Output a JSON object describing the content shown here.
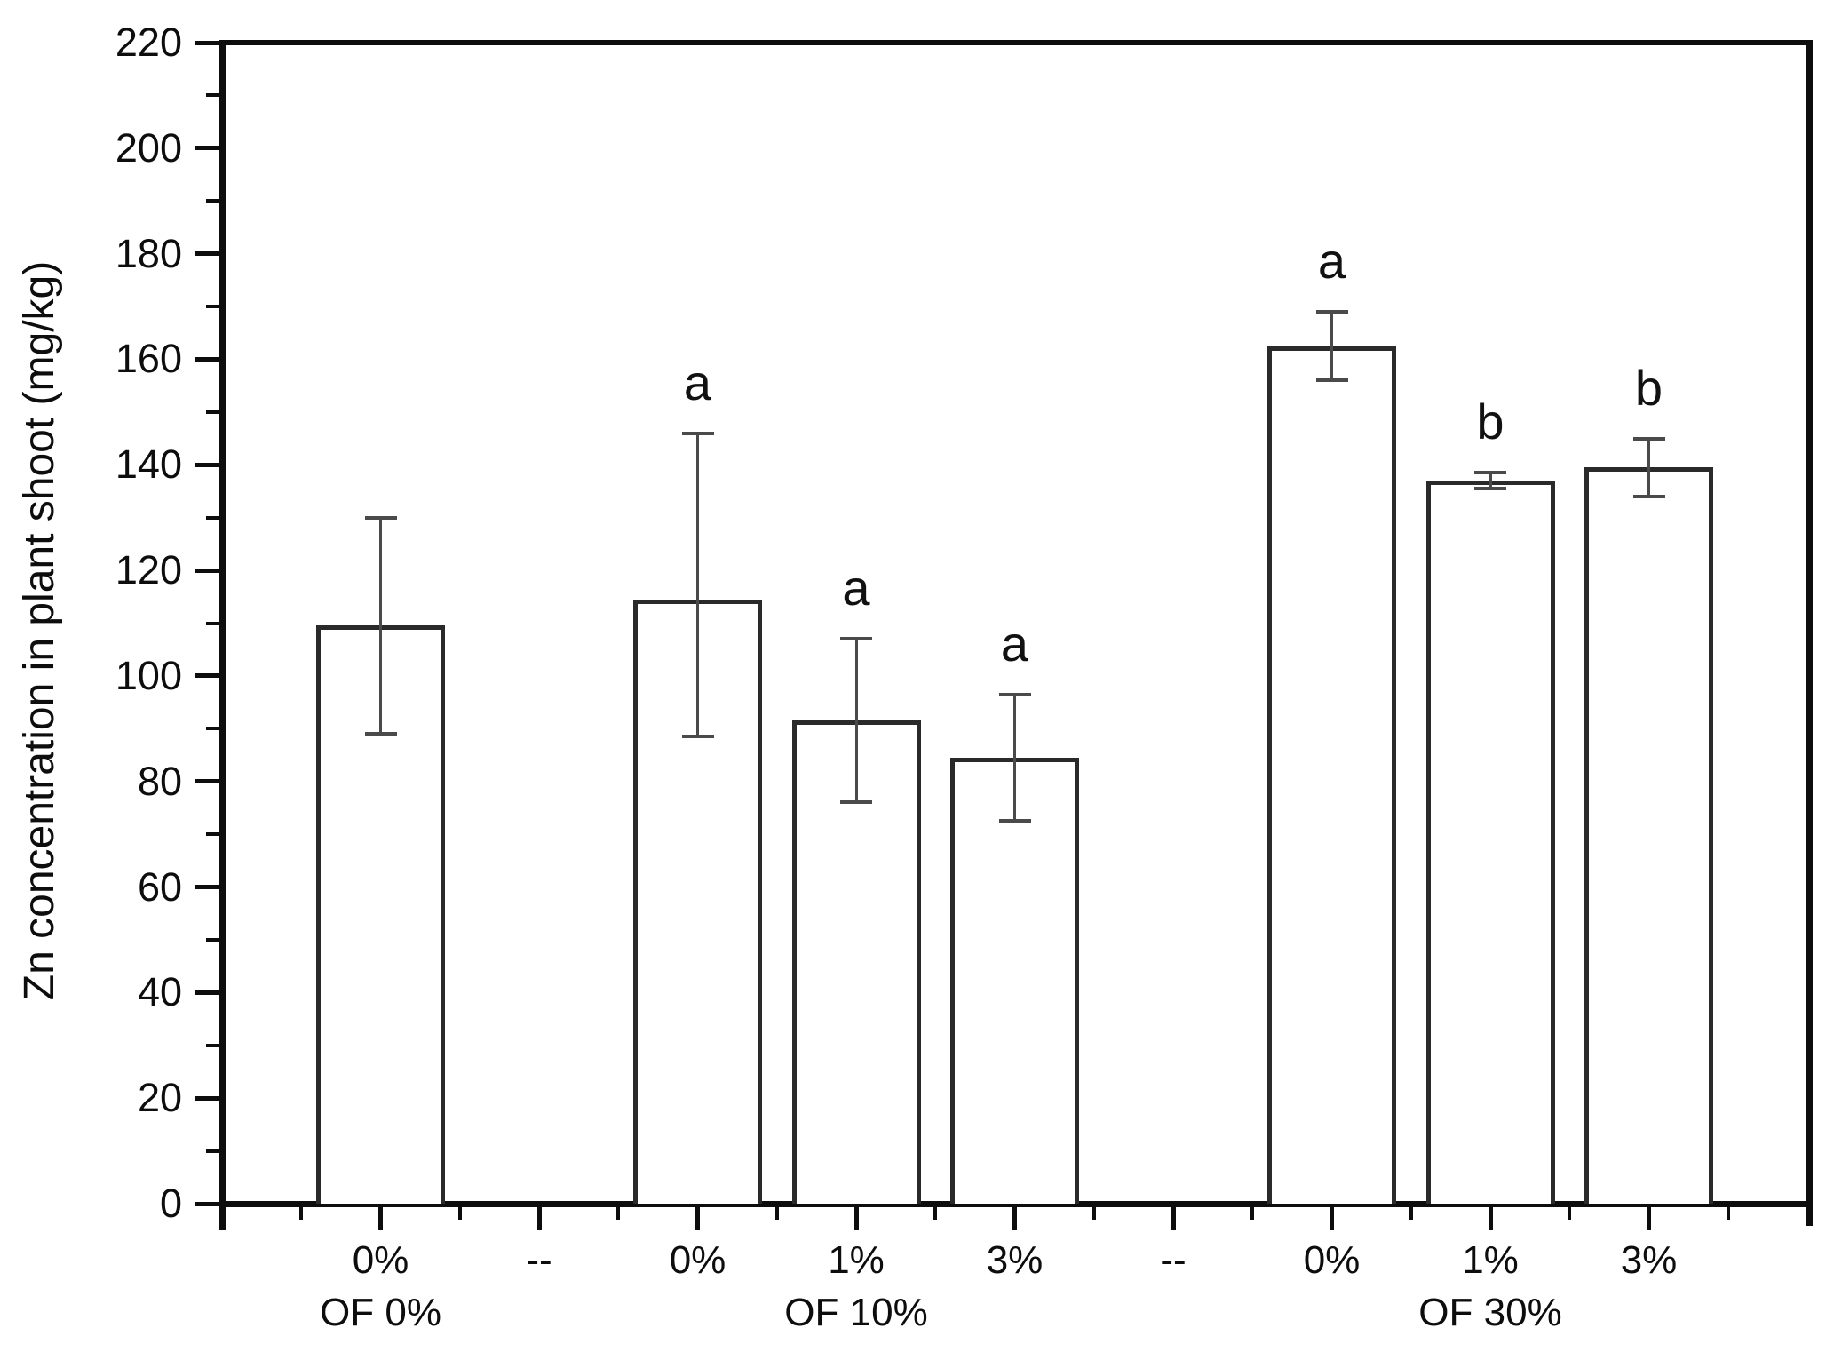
{
  "chart_data": {
    "type": "bar",
    "title": "",
    "xlabel": "",
    "ylabel": "Zn concentration in plant shoot (mg/kg)",
    "ylim": [
      0,
      220
    ],
    "ytick_major_step": 20,
    "ytick_minor_step": 10,
    "grid": false,
    "legend": "none",
    "bar_style": "open rectangles with error bars and significance letters",
    "slot_labels": [
      "0%",
      "--",
      "0%",
      "1%",
      "3%",
      "--",
      "0%",
      "1%",
      "3%"
    ],
    "group_labels": [
      {
        "text": "OF 0%",
        "slot": 1
      },
      {
        "text": "OF 10%",
        "slot": 4
      },
      {
        "text": "OF 30%",
        "slot": 8
      }
    ],
    "bars": [
      {
        "slot": 1,
        "x_label": "0%",
        "group": "OF 0%",
        "value": 109.5,
        "err_low": 89,
        "err_high": 130,
        "letter": ""
      },
      {
        "slot": 3,
        "x_label": "0%",
        "group": "OF 10%",
        "value": 114.5,
        "err_low": 88.5,
        "err_high": 146,
        "letter": "a"
      },
      {
        "slot": 4,
        "x_label": "1%",
        "group": "OF 10%",
        "value": 91.5,
        "err_low": 76,
        "err_high": 107,
        "letter": "a"
      },
      {
        "slot": 5,
        "x_label": "3%",
        "group": "OF 10%",
        "value": 84.5,
        "err_low": 72.5,
        "err_high": 96.5,
        "letter": "a"
      },
      {
        "slot": 7,
        "x_label": "0%",
        "group": "OF 30%",
        "value": 162.5,
        "err_low": 156,
        "err_high": 169,
        "letter": "a"
      },
      {
        "slot": 8,
        "x_label": "1%",
        "group": "OF 30%",
        "value": 137,
        "err_low": 135.5,
        "err_high": 138.5,
        "letter": "b"
      },
      {
        "slot": 9,
        "x_label": "3%",
        "group": "OF 30%",
        "value": 139.5,
        "err_low": 134,
        "err_high": 145,
        "letter": "b"
      }
    ],
    "colors": {
      "background": "#ffffff",
      "axis": "#0d0d0d",
      "bar_stroke": "#2a2a2a",
      "bar_fill": "#ffffff",
      "error_bar": "#4a4a4a",
      "text": "#0d0d0d"
    }
  }
}
